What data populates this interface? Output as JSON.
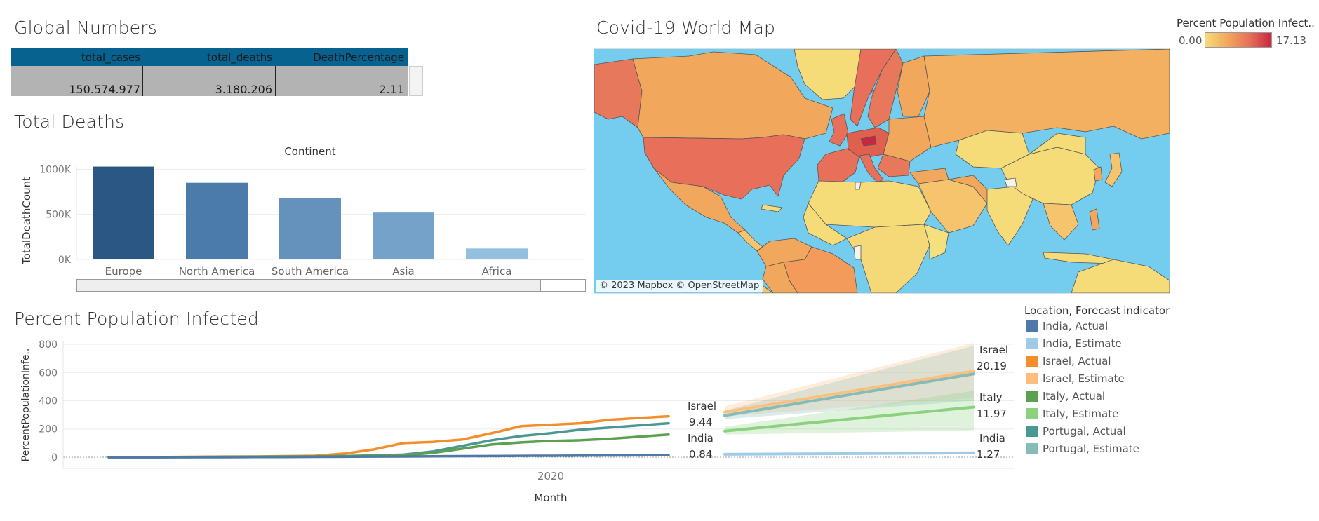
{
  "global_numbers": {
    "title": "Global Numbers",
    "headers": [
      "total_cases",
      "total_deaths",
      "DeathPercentage"
    ],
    "values": [
      "150.574.977",
      "3.180.206",
      "2.11"
    ]
  },
  "total_deaths": {
    "title": "Total Deaths",
    "header": "Continent",
    "ylabel": "TotalDeathCount"
  },
  "world_map": {
    "title": "Covid-19 World Map",
    "attribution": "© 2023 Mapbox © OpenStreetMap",
    "legend_title": "Percent Population Infect..",
    "legend_min": "0.00",
    "legend_max": "17.13",
    "colors": {
      "ocean": "#74cdee",
      "low": "#f5dc79",
      "mid": "#f2a85c",
      "high": "#e8705a",
      "max": "#c7283f"
    }
  },
  "percent_infected": {
    "title": "Percent Population Infected",
    "legend_title": "Location, Forecast indicator",
    "legend": [
      {
        "label": "India, Actual",
        "color": "#4e79a7"
      },
      {
        "label": "India, Estimate",
        "color": "#a0cbe8"
      },
      {
        "label": "Israel, Actual",
        "color": "#f28e2b"
      },
      {
        "label": "Israel, Estimate",
        "color": "#ffbe7d"
      },
      {
        "label": "Italy, Actual",
        "color": "#59a14f"
      },
      {
        "label": "Italy, Estimate",
        "color": "#8cd17d"
      },
      {
        "label": "Portugal, Actual",
        "color": "#499894"
      },
      {
        "label": "Portugal, Estimate",
        "color": "#86bcb6"
      }
    ]
  },
  "chart_data": [
    {
      "type": "bar",
      "title": "Total Deaths",
      "xlabel": "Continent",
      "ylabel": "TotalDeathCount",
      "categories": [
        "Europe",
        "North America",
        "South America",
        "Asia",
        "Africa"
      ],
      "values": [
        1030000,
        850000,
        680000,
        520000,
        122000
      ],
      "colors": [
        "#2a5783",
        "#4a7bab",
        "#6592bd",
        "#74a2c9",
        "#94c0e0"
      ],
      "yticks": [
        {
          "v": 0,
          "label": "0K"
        },
        {
          "v": 500000,
          "label": "500K"
        },
        {
          "v": 1000000,
          "label": "1000K"
        }
      ],
      "ylim": [
        0,
        1050000
      ],
      "grid": true
    },
    {
      "type": "line",
      "title": "Percent Population Infected",
      "xlabel": "Month",
      "ylabel": "PercentPopulationInfe..",
      "xtick_label": "2020",
      "xtick_index": 15,
      "ylim": [
        -40,
        820
      ],
      "yticks": [
        0,
        200,
        400,
        600,
        800
      ],
      "grid": true,
      "actual_x_count": 20,
      "series": [
        {
          "name": "Israel",
          "kind": "actual",
          "color": "#f28e2b",
          "values": [
            0,
            0,
            1,
            3,
            4,
            5,
            7,
            10,
            25,
            55,
            100,
            108,
            125,
            170,
            220,
            230,
            240,
            265,
            278,
            290
          ],
          "end_label": "9.44"
        },
        {
          "name": "Portugal",
          "kind": "actual",
          "color": "#499894",
          "values": [
            0,
            0,
            0,
            1,
            2,
            3,
            4,
            5,
            8,
            12,
            18,
            40,
            80,
            120,
            150,
            170,
            195,
            210,
            225,
            240
          ]
        },
        {
          "name": "Italy",
          "kind": "actual",
          "color": "#59a14f",
          "values": [
            0,
            0,
            0,
            1,
            2,
            3,
            4,
            5,
            7,
            9,
            12,
            30,
            60,
            90,
            105,
            115,
            120,
            130,
            145,
            160
          ]
        },
        {
          "name": "India",
          "kind": "actual",
          "color": "#4e79a7",
          "values": [
            0,
            0,
            0,
            0,
            0,
            1,
            1,
            2,
            3,
            4,
            5,
            6,
            7,
            8,
            9,
            10,
            11,
            12,
            13,
            14
          ],
          "end_label": "0.84"
        }
      ],
      "estimates": [
        {
          "name": "Israel",
          "color": "#ffbe7d",
          "start": 320,
          "end": 610,
          "band_lo_start": 290,
          "band_lo_end": 420,
          "band_hi_start": 360,
          "band_hi_end": 810,
          "end_label": "20.19"
        },
        {
          "name": "Portugal",
          "color": "#86bcb6",
          "start": 295,
          "end": 590,
          "band_lo_start": 270,
          "band_lo_end": 400,
          "band_hi_start": 330,
          "band_hi_end": 790
        },
        {
          "name": "Italy",
          "color": "#8cd17d",
          "start": 185,
          "end": 355,
          "band_lo_start": 160,
          "band_lo_end": 190,
          "band_hi_start": 215,
          "band_hi_end": 470,
          "end_label": "11.97"
        },
        {
          "name": "India",
          "color": "#a0cbe8",
          "start": 20,
          "end": 30,
          "band_lo_start": 15,
          "band_lo_end": 20,
          "band_hi_start": 25,
          "band_hi_end": 42,
          "end_label": "1.27"
        }
      ]
    }
  ]
}
